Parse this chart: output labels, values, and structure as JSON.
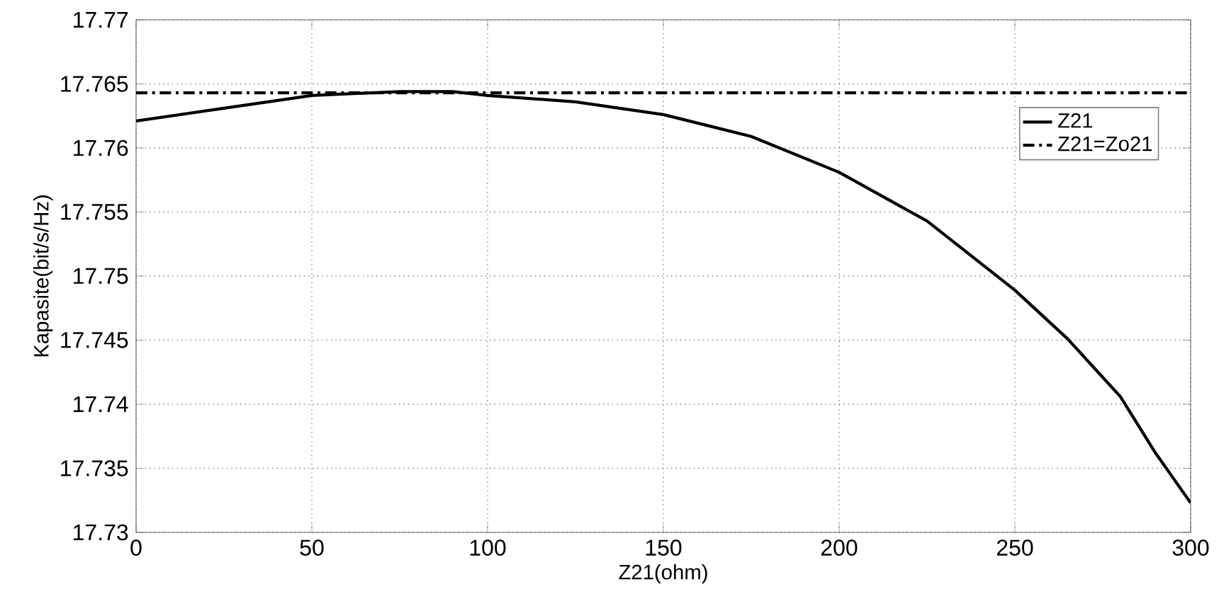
{
  "chart_data": {
    "type": "line",
    "xlabel": "Z21(ohm)",
    "ylabel": "Kapasite(bit/s/Hz)",
    "xlim": [
      0,
      300
    ],
    "xticks": [
      0,
      50,
      100,
      150,
      200,
      250,
      300
    ],
    "ylim": [
      17.73,
      17.77
    ],
    "yticks": [
      17.73,
      17.735,
      17.74,
      17.745,
      17.75,
      17.755,
      17.76,
      17.765,
      17.77
    ],
    "grid": true,
    "legend": "top right",
    "series": [
      {
        "name": "Z21",
        "color": "#000000",
        "line_style": "solid",
        "x": [
          0,
          25,
          50,
          75,
          90,
          100,
          125,
          150,
          175,
          200,
          225,
          250,
          265,
          275,
          280,
          290,
          300
        ],
        "values": [
          17.7621,
          17.7631,
          17.7641,
          17.7644,
          17.7644,
          17.7641,
          17.7636,
          17.7626,
          17.7609,
          17.7581,
          17.7543,
          17.7489,
          17.7451,
          17.7421,
          17.7406,
          17.7362,
          17.7323
        ]
      },
      {
        "name": "Z21=Zo21",
        "color": "#000000",
        "line_style": "dashdot",
        "x": [
          0,
          300
        ],
        "values": [
          17.7643,
          17.7643
        ]
      }
    ]
  }
}
